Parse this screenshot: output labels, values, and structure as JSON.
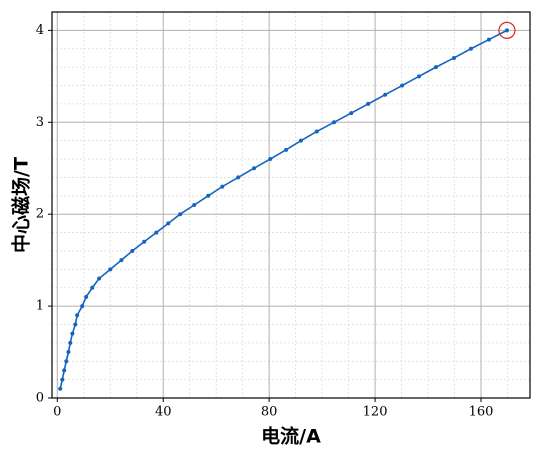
{
  "chart_data": {
    "type": "line",
    "xlabel": "电流/A",
    "ylabel": "中心磁场/T",
    "x": [
      1.1,
      1.9,
      2.6,
      3.4,
      4.2,
      4.9,
      5.7,
      6.8,
      7.5,
      9.4,
      10.9,
      13.2,
      15.8,
      20,
      24.2,
      28.3,
      32.8,
      37.4,
      41.9,
      46.4,
      51.7,
      57,
      62.3,
      68.3,
      74.3,
      80.4,
      86.4,
      92,
      98,
      104.5,
      111,
      117.4,
      123.8,
      130.2,
      136.6,
      143,
      149.8,
      156.2,
      163,
      169.8
    ],
    "series": [
      {
        "color": "#1565c0",
        "values": [
          0.1,
          0.2,
          0.3,
          0.4,
          0.5,
          0.6,
          0.7,
          0.8,
          0.9,
          1.0,
          1.1,
          1.2,
          1.3,
          1.4,
          1.5,
          1.6,
          1.7,
          1.8,
          1.9,
          2.0,
          2.1,
          2.2,
          2.3,
          2.4,
          2.5,
          2.6,
          2.7,
          2.8,
          2.9,
          3.0,
          3.1,
          3.2,
          3.3,
          3.4,
          3.5,
          3.6,
          3.7,
          3.8,
          3.9,
          4.0
        ]
      }
    ],
    "xlim": [
      -2,
      178.5
    ],
    "ylim": [
      0,
      4.2
    ],
    "xticks": [
      0,
      40,
      80,
      120,
      160
    ],
    "yticks": [
      0,
      1,
      2,
      3,
      4
    ],
    "xminorticks": [
      10,
      20,
      30,
      50,
      60,
      70,
      90,
      100,
      110,
      130,
      140,
      150,
      170
    ],
    "yminorticks": [
      0.2,
      0.4,
      0.6,
      0.8,
      1.2,
      1.4,
      1.6,
      1.8,
      2.2,
      2.4,
      2.6,
      2.8,
      3.2,
      3.4,
      3.6,
      3.8
    ],
    "grid": true,
    "minor_grid": true,
    "highlight": {
      "index": 39,
      "color": "#d62728"
    }
  }
}
